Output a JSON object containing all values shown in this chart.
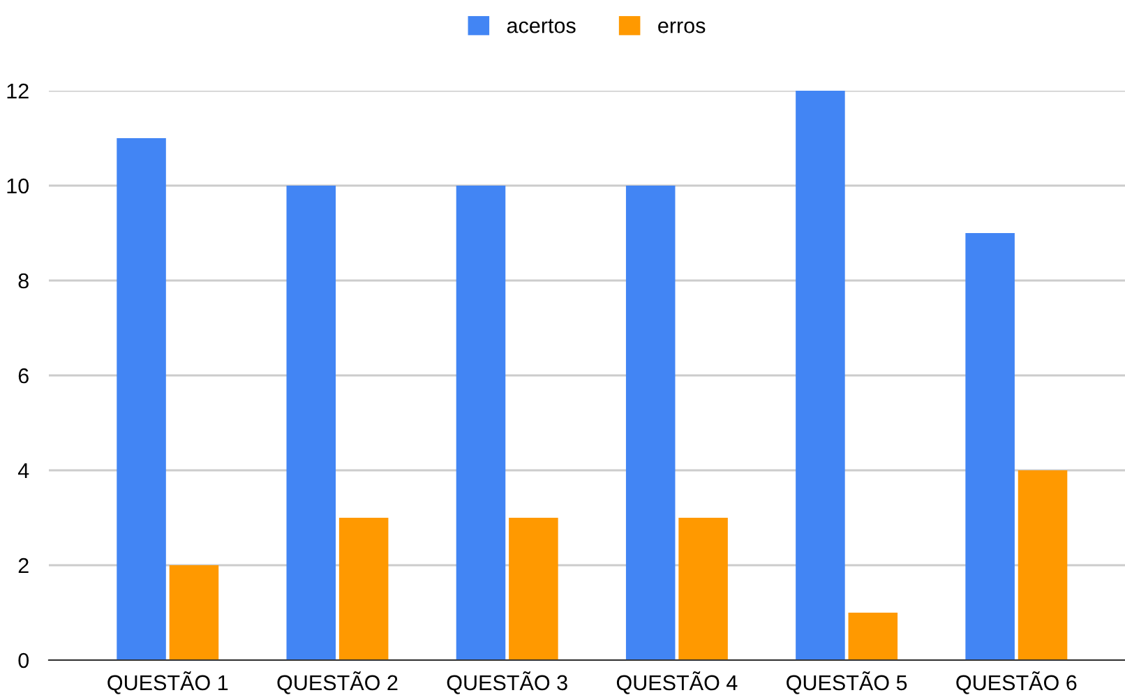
{
  "chart_data": {
    "type": "bar",
    "categories": [
      "QUESTÃO 1",
      "QUESTÃO 2",
      "QUESTÃO 3",
      "QUESTÃO 4",
      "QUESTÃO 5",
      "QUESTÃO 6"
    ],
    "series": [
      {
        "name": "acertos",
        "color": "#4285f4",
        "values": [
          11,
          10,
          10,
          10,
          12,
          9
        ]
      },
      {
        "name": "erros",
        "color": "#ff9900",
        "values": [
          2,
          3,
          3,
          3,
          1,
          4
        ]
      }
    ],
    "ylim": [
      0,
      12
    ],
    "yticks": [
      0,
      2,
      4,
      6,
      8,
      10,
      12
    ],
    "grid": "y",
    "legend": "top"
  }
}
